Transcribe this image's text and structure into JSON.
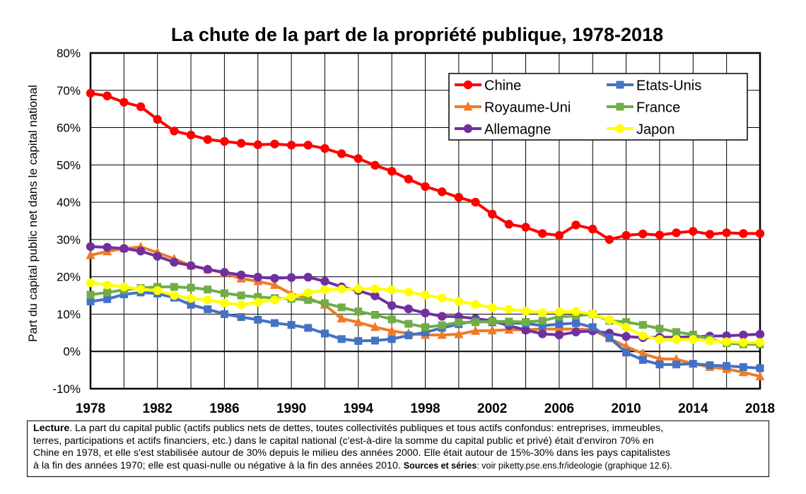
{
  "chart_data": {
    "type": "line",
    "title": "La chute de la part de la propriété publique, 1978-2018",
    "ylabel": "Part du capital public net dans le capital national",
    "xlabel": "",
    "ylim": [
      -10,
      80
    ],
    "xlim": [
      1978,
      2018
    ],
    "y_ticks": [
      -10,
      0,
      10,
      20,
      30,
      40,
      50,
      60,
      70,
      80
    ],
    "y_tick_labels": [
      "-10%",
      "0%",
      "10%",
      "20%",
      "30%",
      "40%",
      "50%",
      "60%",
      "70%",
      "80%"
    ],
    "x_ticks": [
      1978,
      1982,
      1986,
      1990,
      1994,
      1998,
      2002,
      2006,
      2010,
      2014,
      2018
    ],
    "x_tick_labels": [
      "1978",
      "1982",
      "1986",
      "1990",
      "1994",
      "1998",
      "2002",
      "2006",
      "2010",
      "2014",
      "2018"
    ],
    "grid": true,
    "legend_position": "top-right",
    "x": [
      1978,
      1979,
      1980,
      1981,
      1982,
      1983,
      1984,
      1985,
      1986,
      1987,
      1988,
      1989,
      1990,
      1991,
      1992,
      1993,
      1994,
      1995,
      1996,
      1997,
      1998,
      1999,
      2000,
      2001,
      2002,
      2003,
      2004,
      2005,
      2006,
      2007,
      2008,
      2009,
      2010,
      2011,
      2012,
      2013,
      2014,
      2015,
      2016,
      2017,
      2018
    ],
    "series": [
      {
        "name": "Chine",
        "color": "#ff0000",
        "marker": "circle",
        "values": [
          69.2,
          68.5,
          66.8,
          65.6,
          62.2,
          59.1,
          58.0,
          56.8,
          56.3,
          55.8,
          55.4,
          55.6,
          55.3,
          55.3,
          54.4,
          53.0,
          51.7,
          49.9,
          48.3,
          46.2,
          44.2,
          42.8,
          41.3,
          40.0,
          36.8,
          34.1,
          33.3,
          31.6,
          31.1,
          33.9,
          32.8,
          30.0,
          31.1,
          31.5,
          31.2,
          31.8,
          32.2,
          31.4,
          31.8,
          31.6,
          31.6
        ]
      },
      {
        "name": "Royaume-Uni",
        "color": "#f07a28",
        "marker": "triangle",
        "values": [
          25.8,
          26.8,
          27.6,
          28.0,
          26.5,
          24.8,
          23.0,
          22.0,
          21.0,
          19.5,
          18.8,
          17.8,
          15.4,
          14.3,
          12.5,
          8.8,
          7.8,
          6.5,
          5.5,
          4.8,
          4.4,
          4.4,
          4.6,
          5.5,
          5.6,
          5.8,
          5.8,
          6.0,
          6.0,
          6.0,
          5.8,
          3.5,
          1.3,
          -0.6,
          -2.0,
          -2.1,
          -3.3,
          -4.2,
          -4.7,
          -5.6,
          -6.7
        ]
      },
      {
        "name": "Allemagne",
        "color": "#7030a0",
        "marker": "circle",
        "values": [
          28.1,
          27.9,
          27.6,
          26.9,
          25.5,
          23.9,
          23.0,
          22.0,
          21.2,
          20.5,
          19.9,
          19.6,
          19.8,
          19.9,
          18.8,
          17.3,
          16.3,
          14.9,
          12.3,
          11.4,
          10.3,
          9.4,
          9.3,
          8.8,
          8.2,
          6.9,
          5.7,
          4.7,
          4.4,
          5.2,
          5.5,
          4.9,
          4.0,
          3.7,
          3.8,
          3.8,
          3.9,
          4.1,
          4.2,
          4.4,
          4.6
        ]
      },
      {
        "name": "Etats-Unis",
        "color": "#4472c4",
        "marker": "square",
        "values": [
          13.4,
          14.0,
          15.3,
          15.8,
          15.5,
          14.4,
          12.5,
          11.3,
          10.0,
          9.2,
          8.5,
          7.6,
          7.1,
          6.3,
          4.8,
          3.3,
          2.8,
          2.9,
          3.3,
          4.3,
          5.1,
          6.3,
          7.3,
          8.2,
          7.8,
          7.6,
          7.5,
          6.9,
          7.3,
          7.6,
          6.5,
          3.7,
          -0.3,
          -2.3,
          -3.5,
          -3.5,
          -3.3,
          -3.7,
          -3.9,
          -4.2,
          -4.5
        ]
      },
      {
        "name": "France",
        "color": "#70ad47",
        "marker": "square",
        "values": [
          15.2,
          15.8,
          16.5,
          17.0,
          17.3,
          17.3,
          17.1,
          16.6,
          15.6,
          15.0,
          14.6,
          14.3,
          14.1,
          13.8,
          12.9,
          11.8,
          10.7,
          9.8,
          8.6,
          7.4,
          6.5,
          7.0,
          7.8,
          7.8,
          8.1,
          8.0,
          7.9,
          8.2,
          9.3,
          9.5,
          10.0,
          8.2,
          7.9,
          7.1,
          6.1,
          5.2,
          4.5,
          3.3,
          2.2,
          1.9,
          1.9
        ]
      },
      {
        "name": "Japon",
        "color": "#ffff00",
        "marker": "circle",
        "values": [
          18.4,
          17.8,
          17.3,
          16.7,
          16.3,
          15.0,
          14.2,
          13.8,
          13.0,
          12.5,
          13.2,
          13.8,
          14.6,
          15.7,
          16.5,
          16.7,
          16.8,
          16.8,
          16.5,
          15.9,
          15.1,
          14.3,
          13.4,
          12.6,
          11.7,
          11.3,
          10.8,
          10.4,
          10.6,
          10.7,
          10.0,
          8.5,
          6.5,
          4.2,
          3.2,
          3.2,
          3.2,
          2.8,
          2.6,
          2.4,
          2.4
        ]
      }
    ]
  },
  "lecture": {
    "label": "Lecture",
    "line1": ". La part du capital public (actifs publics nets de dettes, toutes collectivités publiques et tous actifs confondus: entreprises, immeubles,",
    "line2": "terres, participations et actifs financiers, etc.) dans le capital national (c'est-à-dire la somme du capital public et privé) était d'environ 70% en",
    "line3": "Chine en 1978, et elle s'est stabilisée autour de 30% depuis le milieu des années 2000. Elle était autour de 15%-30% dans les pays capitalistes",
    "line4": "à la fin des années 1970; elle est quasi-nulle ou négative à la fin des années 2010.",
    "sources_label": "Sources et séries",
    "sources_text": ": voir piketty.pse.ens.fr/ideologie (graphique 12.6)."
  }
}
